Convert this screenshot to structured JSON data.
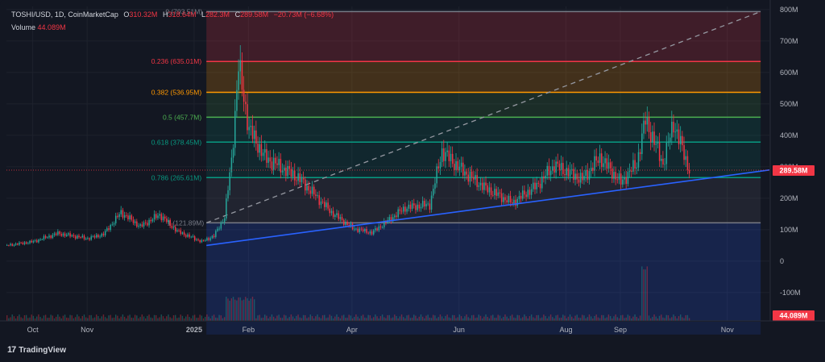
{
  "header": {
    "symbol": "TOSHI/USD, 1D, CoinMarketCap",
    "open_label": "O",
    "open": "310.32M",
    "high_label": "H",
    "high": "318.64M",
    "low_label": "L",
    "low": "282.3M",
    "close_label": "C",
    "close": "289.58M",
    "change": "−20.73M (−6.68%)"
  },
  "volume_legend": {
    "label": "Volume",
    "value": "44.089M"
  },
  "footer": {
    "logo_glyph": "17",
    "brand": "TradingView"
  },
  "colors": {
    "background": "#131722",
    "up": "#26a69a",
    "down": "#f23645",
    "trendline": "#2962ff",
    "grid": "#1e222d",
    "text": "#b2b5be"
  },
  "chart_data": {
    "type": "candlestick",
    "symbol": "TOSHI/USD",
    "timeframe": "1D",
    "source": "CoinMarketCap",
    "y_axis": {
      "ticks": [
        800,
        700,
        600,
        500,
        400,
        300,
        200,
        100,
        0,
        -100
      ],
      "tick_labels": [
        "800M",
        "700M",
        "600M",
        "500M",
        "400M",
        "300M",
        "200M",
        "100M",
        "0",
        "-100M"
      ],
      "range": [
        -190,
        810
      ],
      "unit": "M"
    },
    "x_axis": {
      "tick_labels": [
        "Oct",
        "Nov",
        "2025",
        "Feb",
        "Apr",
        "Jun",
        "Aug",
        "Sep",
        "Nov"
      ],
      "tick_dates": [
        "2024-10-01",
        "2024-11-01",
        "2025-01-01",
        "2025-02-01",
        "2025-04-01",
        "2025-06-01",
        "2025-08-01",
        "2025-09-01",
        "2025-11-01"
      ],
      "range": [
        "2024-09-16",
        "2025-11-25"
      ]
    },
    "price_series": {
      "name": "TOSHI/USD",
      "points": [
        {
          "date": "2024-09-16",
          "value": 50
        },
        {
          "date": "2024-10-01",
          "value": 62
        },
        {
          "date": "2024-10-15",
          "value": 88
        },
        {
          "date": "2024-11-01",
          "value": 72
        },
        {
          "date": "2024-11-10",
          "value": 85
        },
        {
          "date": "2024-11-20",
          "value": 155
        },
        {
          "date": "2024-12-01",
          "value": 110
        },
        {
          "date": "2024-12-12",
          "value": 148
        },
        {
          "date": "2024-12-22",
          "value": 95
        },
        {
          "date": "2025-01-05",
          "value": 62
        },
        {
          "date": "2025-01-12",
          "value": 80
        },
        {
          "date": "2025-01-18",
          "value": 140
        },
        {
          "date": "2025-01-22",
          "value": 320
        },
        {
          "date": "2025-01-26",
          "value": 620
        },
        {
          "date": "2025-02-01",
          "value": 420
        },
        {
          "date": "2025-02-10",
          "value": 330
        },
        {
          "date": "2025-03-01",
          "value": 265
        },
        {
          "date": "2025-03-20",
          "value": 155
        },
        {
          "date": "2025-04-01",
          "value": 105
        },
        {
          "date": "2025-04-12",
          "value": 90
        },
        {
          "date": "2025-05-01",
          "value": 170
        },
        {
          "date": "2025-05-15",
          "value": 180
        },
        {
          "date": "2025-05-22",
          "value": 350
        },
        {
          "date": "2025-06-01",
          "value": 295
        },
        {
          "date": "2025-06-15",
          "value": 235
        },
        {
          "date": "2025-07-01",
          "value": 185
        },
        {
          "date": "2025-07-15",
          "value": 240
        },
        {
          "date": "2025-07-25",
          "value": 305
        },
        {
          "date": "2025-08-10",
          "value": 260
        },
        {
          "date": "2025-08-20",
          "value": 330
        },
        {
          "date": "2025-09-01",
          "value": 250
        },
        {
          "date": "2025-09-10",
          "value": 310
        },
        {
          "date": "2025-09-15",
          "value": 450
        },
        {
          "date": "2025-09-25",
          "value": 310
        },
        {
          "date": "2025-10-01",
          "value": 440
        },
        {
          "date": "2025-10-10",
          "value": 289.58
        }
      ]
    },
    "volume_series": {
      "name": "Volume",
      "last_value": "44.089M"
    },
    "fibonacci_retracement": {
      "date_range": [
        "2025-01-08",
        "2025-11-20"
      ],
      "levels": [
        {
          "ratio": "1",
          "price": 121.89,
          "label": "1 (121.89M)",
          "color": "#787b86"
        },
        {
          "ratio": "0.786",
          "price": 265.61,
          "label": "0.786 (265.61M)",
          "color": "#089981"
        },
        {
          "ratio": "0.618",
          "price": 378.45,
          "label": "0.618 (378.45M)",
          "color": "#089981"
        },
        {
          "ratio": "0.5",
          "price": 457.7,
          "label": "0.5 (457.7M)",
          "color": "#4caf50"
        },
        {
          "ratio": "0.382",
          "price": 536.95,
          "label": "0.382 (536.95M)",
          "color": "#ff9800"
        },
        {
          "ratio": "0.236",
          "price": 635.01,
          "label": "0.236 (635.01M)",
          "color": "#f23645"
        },
        {
          "ratio": "0",
          "price": 793.51,
          "label": "0 (793.51M)",
          "color": "#787b86"
        }
      ]
    },
    "trendline": {
      "start": {
        "date": "2025-01-08",
        "value": 50
      },
      "end": {
        "date": "2025-11-25",
        "value": 290
      },
      "color": "#2962ff"
    },
    "fib_diagonal": {
      "start": {
        "date": "2025-01-08",
        "value": 121.89
      },
      "end": {
        "date": "2025-11-20",
        "value": 793.51
      }
    },
    "last_price": {
      "value": 289.58,
      "label": "289.58M"
    }
  }
}
